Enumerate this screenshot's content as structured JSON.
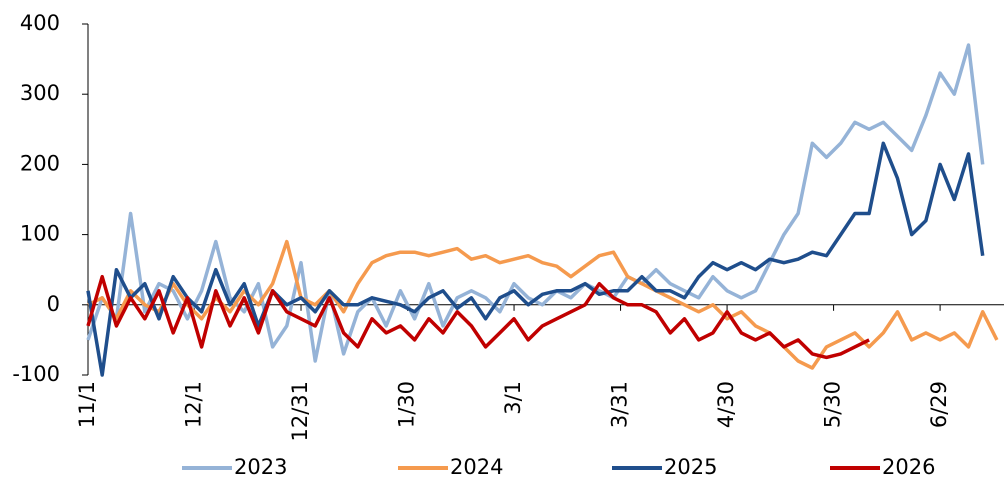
{
  "chart_data": {
    "type": "line",
    "x": [
      0,
      4,
      8,
      12,
      16,
      20,
      24,
      28,
      32,
      36,
      40,
      44,
      48,
      52,
      56,
      60,
      64,
      68,
      72,
      76,
      80,
      84,
      88,
      92,
      96,
      100,
      104,
      108,
      112,
      116,
      120,
      124,
      128,
      132,
      136,
      140,
      144,
      148,
      152,
      156,
      160,
      164,
      168,
      172,
      176,
      180,
      184,
      188,
      192,
      196,
      200,
      204,
      208,
      212,
      216,
      220,
      224,
      228,
      232,
      236,
      240,
      244,
      248,
      252,
      256
    ],
    "xlim": [
      0,
      258
    ],
    "xticks": [
      {
        "value": 0,
        "label": "11/1"
      },
      {
        "value": 30,
        "label": "12/1"
      },
      {
        "value": 60,
        "label": "12/31"
      },
      {
        "value": 90,
        "label": "1/30"
      },
      {
        "value": 120,
        "label": "3/1"
      },
      {
        "value": 150,
        "label": "3/31"
      },
      {
        "value": 180,
        "label": "4/30"
      },
      {
        "value": 210,
        "label": "5/30"
      },
      {
        "value": 240,
        "label": "6/29"
      }
    ],
    "ylim": [
      -100,
      400
    ],
    "yticks": [
      -100,
      0,
      100,
      200,
      300,
      400
    ],
    "legend": "bottom",
    "series": [
      {
        "name": "2023",
        "color": "#95b3d7",
        "values": [
          -50,
          10,
          -20,
          130,
          -10,
          30,
          20,
          -20,
          20,
          90,
          10,
          -10,
          30,
          -60,
          -30,
          60,
          -80,
          20,
          -70,
          -10,
          10,
          -30,
          20,
          -20,
          30,
          -30,
          10,
          20,
          10,
          -10,
          30,
          10,
          0,
          20,
          10,
          30,
          20,
          10,
          40,
          30,
          50,
          30,
          20,
          10,
          40,
          20,
          10,
          20,
          60,
          100,
          130,
          230,
          210,
          230,
          260,
          250,
          260,
          240,
          220,
          270,
          330,
          300,
          370,
          200,
          null
        ]
      },
      {
        "name": "2024",
        "color": "#f59a4e",
        "values": [
          0,
          10,
          -20,
          20,
          0,
          -10,
          30,
          0,
          -20,
          10,
          -10,
          20,
          0,
          30,
          90,
          10,
          0,
          20,
          -10,
          30,
          60,
          70,
          75,
          75,
          70,
          75,
          80,
          65,
          70,
          60,
          65,
          70,
          60,
          55,
          40,
          55,
          70,
          75,
          40,
          30,
          20,
          10,
          0,
          -10,
          0,
          -20,
          -10,
          -30,
          -40,
          -60,
          -80,
          -90,
          -60,
          -50,
          -40,
          -60,
          -40,
          -10,
          -50,
          -40,
          -50,
          -40,
          -60,
          -10,
          -50
        ]
      },
      {
        "name": "2025",
        "color": "#1f4e8c",
        "values": [
          20,
          -100,
          50,
          10,
          30,
          -20,
          40,
          10,
          -10,
          50,
          0,
          30,
          -30,
          20,
          0,
          10,
          -10,
          20,
          0,
          0,
          10,
          5,
          0,
          -10,
          10,
          20,
          -5,
          10,
          -20,
          10,
          20,
          0,
          15,
          20,
          20,
          30,
          15,
          20,
          20,
          40,
          20,
          20,
          10,
          40,
          60,
          50,
          60,
          50,
          65,
          60,
          65,
          75,
          70,
          100,
          130,
          130,
          230,
          180,
          100,
          120,
          200,
          150,
          215,
          70,
          null
        ]
      },
      {
        "name": "2026",
        "color": "#c00000",
        "values": [
          -30,
          40,
          -30,
          10,
          -20,
          20,
          -40,
          10,
          -60,
          20,
          -30,
          10,
          -40,
          20,
          -10,
          -20,
          -30,
          10,
          -40,
          -60,
          -20,
          -40,
          -30,
          -50,
          -20,
          -40,
          -10,
          -30,
          -60,
          -40,
          -20,
          -50,
          -30,
          -20,
          -10,
          0,
          30,
          10,
          0,
          0,
          -10,
          -40,
          -20,
          -50,
          -40,
          -10,
          -40,
          -50,
          -40,
          -60,
          -50,
          -70,
          -75,
          -70,
          -60,
          -50,
          null,
          null,
          null,
          null,
          null,
          null,
          null,
          null,
          null
        ]
      }
    ]
  }
}
